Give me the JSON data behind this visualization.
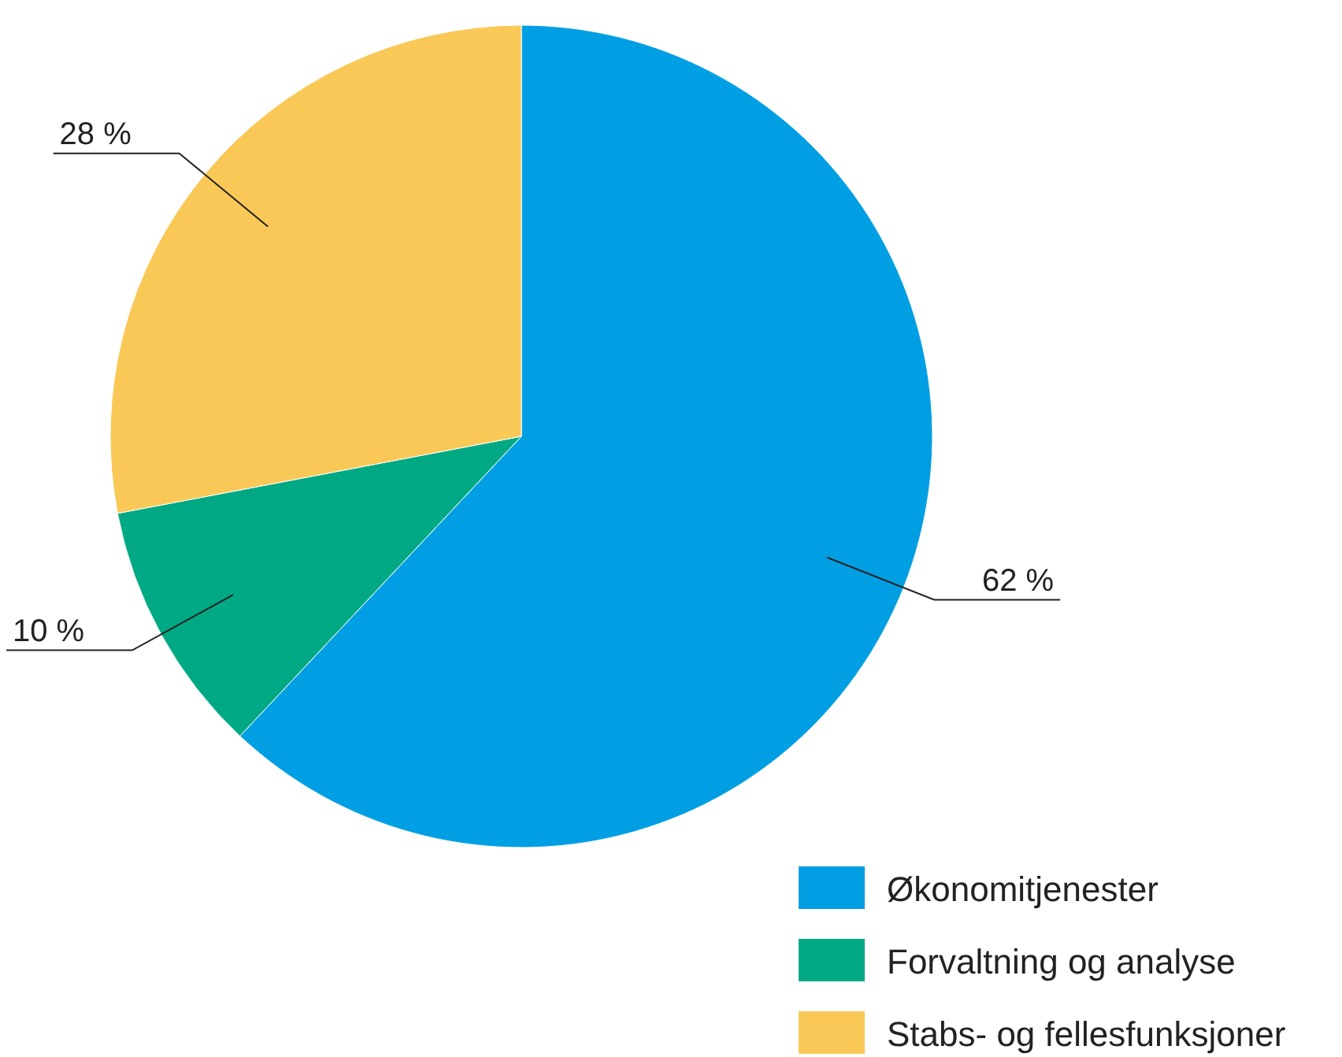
{
  "chart_data": {
    "type": "pie",
    "categories": [
      "Økonomitjenester",
      "Forvaltning og analyse",
      "Stabs- og fellesfunksjoner"
    ],
    "values": [
      62,
      10,
      28
    ],
    "colors": [
      "#009fe3",
      "#00a984",
      "#f9c856"
    ],
    "value_labels": [
      "62 %",
      "10 %",
      "28 %"
    ],
    "legend": "bottom right"
  }
}
